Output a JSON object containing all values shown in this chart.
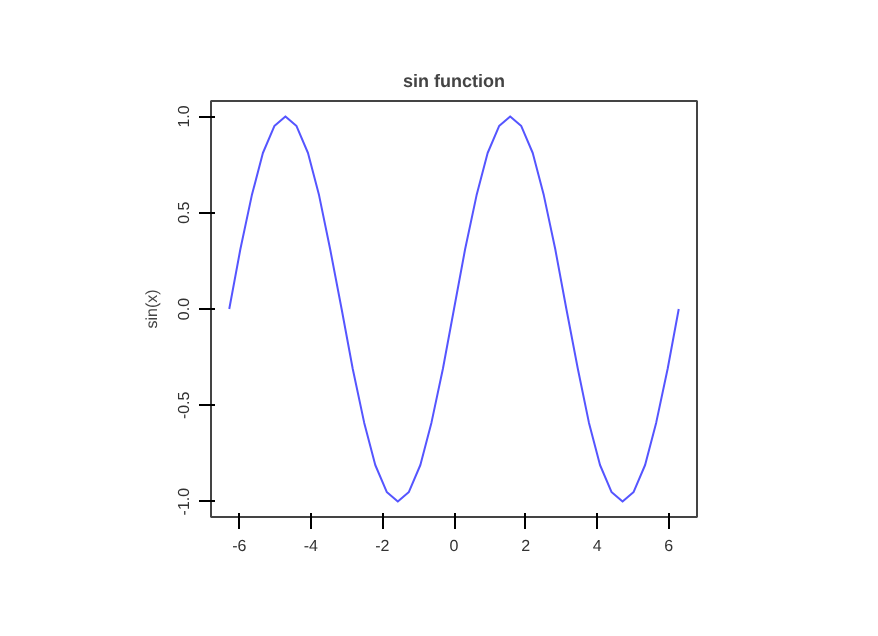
{
  "chart_data": {
    "type": "line",
    "title": "sin function",
    "ylabel": "sin(x)",
    "x": [
      -6.28,
      -5.97,
      -5.65,
      -5.34,
      -5.02,
      -4.71,
      -4.4,
      -4.08,
      -3.77,
      -3.46,
      -3.14,
      -2.83,
      -2.51,
      -2.2,
      -1.88,
      -1.57,
      -1.26,
      -0.94,
      -0.63,
      -0.31,
      0,
      0.31,
      0.63,
      0.94,
      1.26,
      1.57,
      1.88,
      2.2,
      2.51,
      2.83,
      3.14,
      3.46,
      3.77,
      4.08,
      4.4,
      4.71,
      5.02,
      5.34,
      5.65,
      5.97,
      6.28
    ],
    "series": [
      {
        "color": "#5555ff",
        "values": [
          0,
          0.31,
          0.59,
          0.81,
          0.95,
          1,
          0.95,
          0.81,
          0.59,
          0.31,
          0,
          -0.31,
          -0.59,
          -0.81,
          -0.95,
          -1,
          -0.95,
          -0.81,
          -0.59,
          -0.31,
          0,
          0.31,
          0.59,
          0.81,
          0.95,
          1,
          0.95,
          0.81,
          0.59,
          0.31,
          0,
          -0.31,
          -0.59,
          -0.81,
          -0.95,
          -1,
          -0.95,
          -0.81,
          -0.59,
          -0.31,
          0
        ]
      }
    ],
    "xlim": [
      -6.79,
      6.79
    ],
    "ylim": [
      -1.08,
      1.08
    ],
    "xticks": [
      -6,
      -4,
      -2,
      0,
      2,
      4,
      6
    ],
    "yticks": [
      {
        "value": -1,
        "label": "-1.0"
      },
      {
        "value": -0.5,
        "label": "-0.5"
      },
      {
        "value": 0,
        "label": "0.0"
      },
      {
        "value": 0.5,
        "label": "0.5"
      },
      {
        "value": 1,
        "label": "1.0"
      }
    ],
    "grid": false
  }
}
